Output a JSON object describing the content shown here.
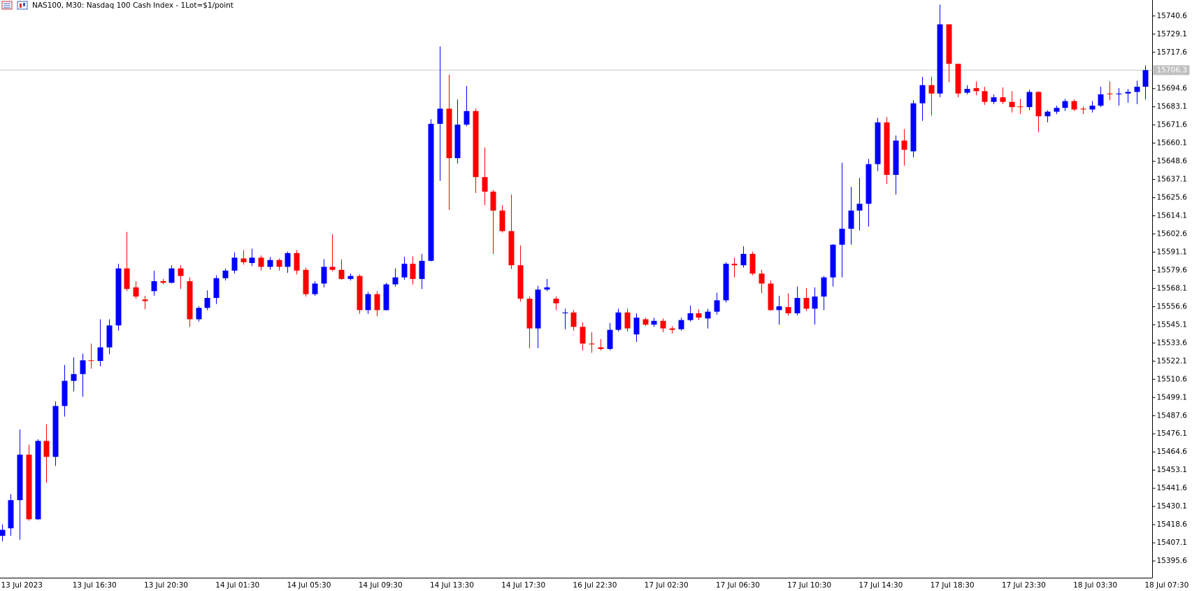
{
  "chart_data": {
    "type": "candlestick",
    "title": "NAS100, M30:  Nasdaq 100 Cash Index - 1Lot=$1/point",
    "categories": [
      "13 Jul 2023",
      null,
      null,
      null,
      null,
      null,
      null,
      null,
      "13 Jul 16:30",
      null,
      null,
      null,
      null,
      null,
      null,
      null,
      "13 Jul 20:30",
      null,
      null,
      null,
      null,
      null,
      null,
      null,
      "14 Jul 01:30",
      null,
      null,
      null,
      null,
      null,
      null,
      null,
      "14 Jul 05:30",
      null,
      null,
      null,
      null,
      null,
      null,
      null,
      "14 Jul 09:30",
      null,
      null,
      null,
      null,
      null,
      null,
      null,
      "14 Jul 13:30",
      null,
      null,
      null,
      null,
      null,
      null,
      null,
      "14 Jul 17:30",
      null,
      null,
      null,
      null,
      null,
      null,
      null,
      "16 Jul 22:30",
      null,
      null,
      null,
      null,
      null,
      null,
      null,
      "17 Jul 02:30",
      null,
      null,
      null,
      null,
      null,
      null,
      null,
      "17 Jul 06:30",
      null,
      null,
      null,
      null,
      null,
      null,
      null,
      "17 Jul 10:30",
      null,
      null,
      null,
      null,
      null,
      null,
      null,
      "17 Jul 14:30",
      null,
      null,
      null,
      null,
      null,
      null,
      null,
      "17 Jul 18:30",
      null,
      null,
      null,
      null,
      null,
      null,
      null,
      "17 Jul 23:30",
      null,
      null,
      null,
      null,
      null,
      null,
      null,
      "18 Jul 03:30",
      null,
      null,
      null,
      null,
      null,
      null,
      null,
      "18 Jul 07:30"
    ],
    "open": [
      15411.5,
      15416.3,
      15434.1,
      15462.9,
      15422.0,
      15471.6,
      15461.5,
      15493.7,
      15509.6,
      15513.9,
      15522.6,
      15522.2,
      15530.8,
      15544.7,
      15580.8,
      15568.8,
      15561.1,
      15566.4,
      15572.7,
      15571.7,
      15580.8,
      15572.7,
      15548.6,
      15555.8,
      15562.1,
      15574.6,
      15579.4,
      15587.1,
      15584.2,
      15587.6,
      15581.8,
      15586.1,
      15581.8,
      15590.5,
      15579.9,
      15564.5,
      15571.2,
      15581.8,
      15579.9,
      15574.1,
      15576.0,
      15554.4,
      15564.5,
      15554.4,
      15570.7,
      15575.1,
      15583.7,
      15574.1,
      15585.6,
      15672.3,
      15681.9,
      15650.6,
      15671.8,
      15680.4,
      15638.6,
      15629.4,
      15617.4,
      15604.4,
      15582.8,
      15561.6,
      15542.8,
      15567.4,
      15561.6,
      15552.4,
      15552.9,
      15543.8,
      15533.2,
      15530.8,
      15529.8,
      15541.9,
      15552.9,
      15539.0,
      15548.6,
      15545.2,
      15547.6,
      15542.8,
      15542.3,
      15548.1,
      15552.4,
      15549.1,
      15553.4,
      15560.6,
      15583.7,
      15582.8,
      15590.0,
      15577.5,
      15571.2,
      15554.4,
      15556.3,
      15552.4,
      15562.1,
      15555.3,
      15563.0,
      15575.1,
      15595.8,
      15605.9,
      15617.4,
      15621.7,
      15646.8,
      15673.2,
      15640.0,
      15661.7,
      15654.9,
      15685.3,
      15696.8,
      15691.5,
      15735.3,
      15710.3,
      15692.0,
      15694.9,
      15693.0,
      15686.2,
      15689.1,
      15686.2,
      15683.3,
      15682.9,
      15692.5,
      15677.1,
      15680.0,
      15682.4,
      15686.7,
      15681.9,
      15681.4,
      15683.8,
      15691.5,
      15691.0,
      15691.5,
      15692.5,
      15695.8
    ],
    "high": [
      15418.7,
      15437.9,
      15478.8,
      15469.2,
      15472.6,
      15482.2,
      15496.6,
      15519.7,
      15524.5,
      15526.9,
      15533.2,
      15548.6,
      15548.6,
      15583.7,
      15603.9,
      15572.7,
      15563.5,
      15579.4,
      15574.1,
      15582.8,
      15582.8,
      15575.1,
      15556.8,
      15566.9,
      15576.5,
      15580.8,
      15590.9,
      15592.4,
      15593.3,
      15589.0,
      15588.1,
      15587.1,
      15591.4,
      15592.4,
      15581.3,
      15572.7,
      15586.6,
      15602.5,
      15586.6,
      15577.5,
      15577.0,
      15565.9,
      15566.4,
      15571.7,
      15580.8,
      15588.1,
      15588.5,
      15590.0,
      15675.2,
      15721.3,
      15703.5,
      15687.7,
      15696.3,
      15681.9,
      15657.3,
      15630.4,
      15620.8,
      15627.5,
      15595.3,
      15563.0,
      15569.8,
      15574.1,
      15563.0,
      15555.3,
      15554.4,
      15546.7,
      15540.4,
      15536.1,
      15546.2,
      15555.3,
      15555.3,
      15552.4,
      15549.6,
      15549.6,
      15549.1,
      15544.3,
      15549.6,
      15557.3,
      15554.9,
      15555.3,
      15565.4,
      15584.7,
      15587.6,
      15594.8,
      15591.4,
      15579.9,
      15573.1,
      15563.5,
      15565.0,
      15569.3,
      15568.3,
      15568.8,
      15576.0,
      15596.2,
      15647.7,
      15632.3,
      15638.1,
      15650.1,
      15676.1,
      15676.6,
      15665.0,
      15668.9,
      15687.2,
      15702.1,
      15702.1,
      15747.8,
      15735.3,
      15710.3,
      15696.8,
      15699.2,
      15695.8,
      15691.0,
      15695.4,
      15693.0,
      15688.1,
      15693.9,
      15693.0,
      15680.9,
      15683.8,
      15688.1,
      15687.7,
      15683.3,
      15686.7,
      15695.8,
      15699.2,
      15694.9,
      15694.4,
      15699.7,
      15709.3
    ],
    "low": [
      15408.1,
      15411.5,
      15409.0,
      15421.1,
      15421.5,
      15445.1,
      15455.7,
      15487.0,
      15502.9,
      15499.5,
      15517.3,
      15518.8,
      15526.5,
      15541.4,
      15566.4,
      15561.6,
      15554.9,
      15563.5,
      15570.7,
      15571.2,
      15567.8,
      15543.8,
      15547.2,
      15554.4,
      15558.2,
      15573.1,
      15577.5,
      15583.2,
      15582.3,
      15579.4,
      15579.9,
      15579.4,
      15577.9,
      15577.0,
      15563.0,
      15563.5,
      15568.8,
      15578.9,
      15573.6,
      15573.1,
      15552.0,
      15552.0,
      15550.5,
      15554.0,
      15569.3,
      15573.6,
      15570.7,
      15567.8,
      15585.2,
      15636.2,
      15617.9,
      15647.2,
      15670.8,
      15628.5,
      15620.8,
      15590.0,
      15603.5,
      15580.4,
      15559.7,
      15530.3,
      15530.3,
      15566.4,
      15554.4,
      15542.3,
      15541.4,
      15528.9,
      15527.4,
      15528.9,
      15528.9,
      15540.9,
      15540.9,
      15534.2,
      15544.3,
      15543.8,
      15540.4,
      15539.5,
      15541.4,
      15547.2,
      15548.1,
      15542.8,
      15551.5,
      15559.2,
      15575.1,
      15581.3,
      15576.5,
      15565.0,
      15553.9,
      15545.2,
      15551.0,
      15551.0,
      15553.9,
      15545.2,
      15554.4,
      15569.3,
      15575.1,
      15595.8,
      15604.9,
      15607.3,
      15642.4,
      15634.2,
      15627.5,
      15645.8,
      15651.1,
      15674.2,
      15677.6,
      15689.1,
      15698.7,
      15689.1,
      15691.0,
      15690.5,
      15684.3,
      15684.8,
      15684.8,
      15679.5,
      15678.5,
      15680.9,
      15667.0,
      15673.2,
      15678.5,
      15680.4,
      15680.4,
      15678.5,
      15679.5,
      15682.9,
      15687.2,
      15683.8,
      15685.7,
      15684.8,
      15687.7
    ],
    "close": [
      15415.3,
      15434.1,
      15462.9,
      15422.0,
      15471.6,
      15461.5,
      15493.7,
      15509.6,
      15513.9,
      15522.6,
      15522.2,
      15530.8,
      15544.7,
      15580.8,
      15567.8,
      15563.0,
      15560.1,
      15572.7,
      15571.7,
      15580.8,
      15576.0,
      15548.6,
      15555.8,
      15562.1,
      15574.6,
      15579.4,
      15587.6,
      15584.7,
      15587.6,
      15581.8,
      15586.1,
      15581.8,
      15590.5,
      15579.4,
      15564.5,
      15571.2,
      15581.8,
      15579.9,
      15574.1,
      15576.0,
      15554.4,
      15564.5,
      15554.4,
      15570.7,
      15575.1,
      15583.7,
      15574.1,
      15585.6,
      15672.3,
      15681.9,
      15650.6,
      15671.8,
      15680.4,
      15638.6,
      15629.4,
      15617.4,
      15604.4,
      15582.8,
      15561.6,
      15542.8,
      15567.4,
      15568.8,
      15558.7,
      15552.9,
      15543.8,
      15533.2,
      15532.7,
      15529.8,
      15541.9,
      15552.9,
      15542.8,
      15549.6,
      15545.2,
      15547.6,
      15542.8,
      15541.9,
      15548.1,
      15552.4,
      15549.6,
      15553.4,
      15560.6,
      15583.7,
      15582.8,
      15590.0,
      15577.5,
      15571.2,
      15554.4,
      15556.8,
      15552.4,
      15562.1,
      15555.3,
      15563.0,
      15575.1,
      15595.8,
      15605.9,
      15617.4,
      15621.7,
      15646.8,
      15673.2,
      15640.0,
      15661.7,
      15655.9,
      15685.3,
      15696.8,
      15691.5,
      15735.3,
      15710.3,
      15691.5,
      15694.4,
      15693.0,
      15686.2,
      15689.1,
      15686.2,
      15682.9,
      15682.9,
      15692.5,
      15677.1,
      15680.0,
      15682.4,
      15686.7,
      15681.4,
      15681.4,
      15683.8,
      15691.0,
      15691.0,
      15691.5,
      15692.5,
      15695.8,
      15706.3
    ],
    "up_color": "#0000ff",
    "down_color": "#ff0000",
    "current_price": 15706.3,
    "ylim": [
      15385.0,
      15750.7
    ],
    "yticks": [
      15395.6,
      15407.1,
      15418.6,
      15430.1,
      15441.6,
      15453.1,
      15464.6,
      15476.1,
      15487.6,
      15499.1,
      15510.6,
      15522.1,
      15533.6,
      15545.1,
      15556.6,
      15568.1,
      15579.6,
      15591.1,
      15602.6,
      15614.1,
      15625.6,
      15637.1,
      15648.6,
      15660.1,
      15671.6,
      15683.1,
      15694.6,
      15717.6,
      15729.1,
      15740.6
    ],
    "grid": false
  }
}
